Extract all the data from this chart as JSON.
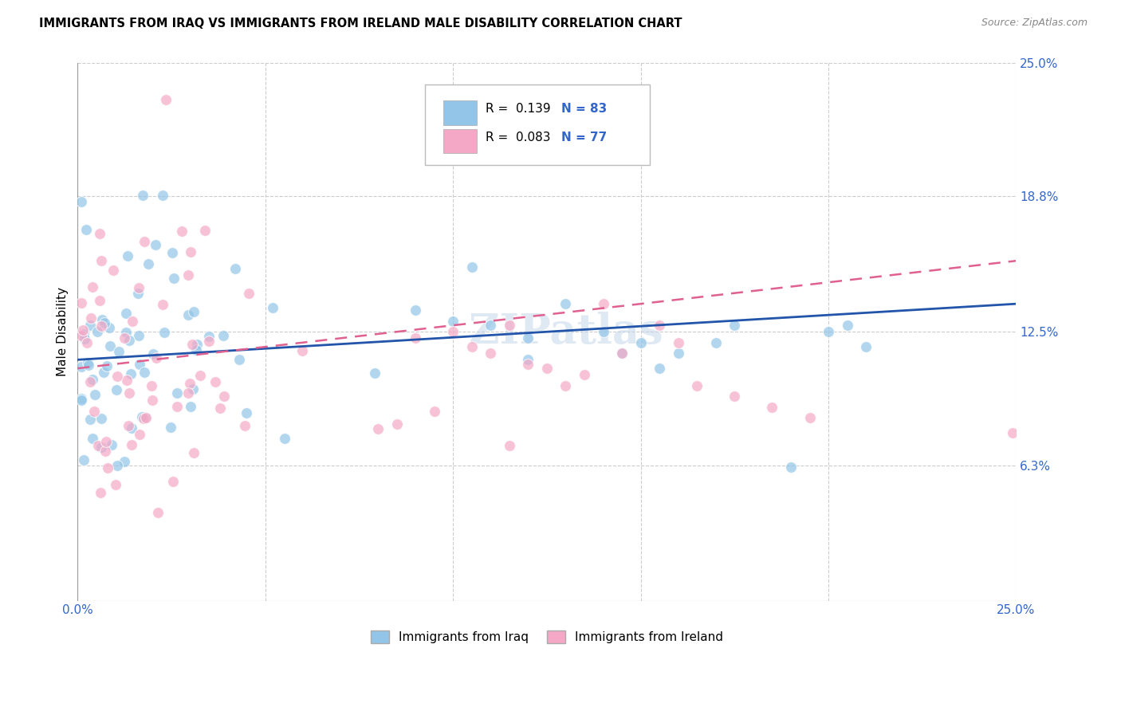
{
  "title": "IMMIGRANTS FROM IRAQ VS IMMIGRANTS FROM IRELAND MALE DISABILITY CORRELATION CHART",
  "source": "Source: ZipAtlas.com",
  "ylabel_label": "Male Disability",
  "x_min": 0.0,
  "x_max": 0.25,
  "y_min": 0.0,
  "y_max": 0.25,
  "iraq_color": "#92c5e8",
  "ireland_color": "#f5a8c5",
  "iraq_line_color": "#2255aa",
  "ireland_line_color": "#e06090",
  "legend_iraq_R": "0.139",
  "legend_iraq_N": "83",
  "legend_ireland_R": "0.083",
  "legend_ireland_N": "77",
  "watermark": "ZIPatlas",
  "iraq_line_start_y": 0.112,
  "iraq_line_end_y": 0.138,
  "ireland_line_start_y": 0.108,
  "ireland_line_end_y": 0.158,
  "iraq_seed": 10,
  "ireland_seed": 20
}
